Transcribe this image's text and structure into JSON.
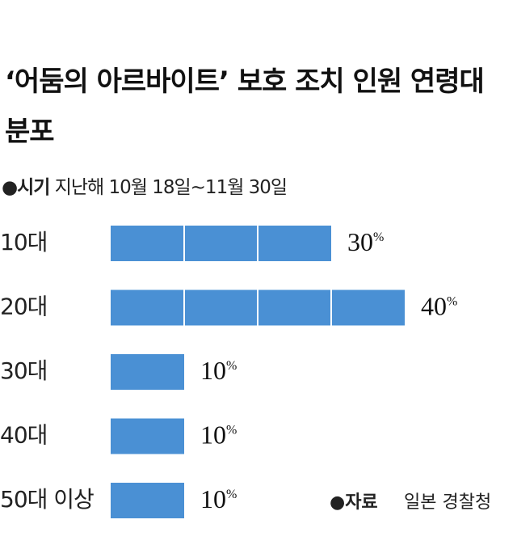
{
  "chart_data": {
    "type": "bar",
    "title": "‘어둠의 아르바이트’ 보호 조치 인원 연령대 분포",
    "subtitle": {
      "label": "●시기",
      "text": "지난해 10월 18일~11월 30일"
    },
    "source": {
      "label": "●자료",
      "text": "일본 경찰청"
    },
    "categories": [
      "10대",
      "20대",
      "30대",
      "40대",
      "50대 이상"
    ],
    "values": [
      30,
      40,
      10,
      10,
      10
    ],
    "value_labels": [
      "30%",
      "40%",
      "10%",
      "10%",
      "10%"
    ],
    "color": "#4a90d4",
    "xlim": [
      0,
      40
    ],
    "xticks": [
      0,
      10,
      20,
      30,
      40
    ]
  }
}
